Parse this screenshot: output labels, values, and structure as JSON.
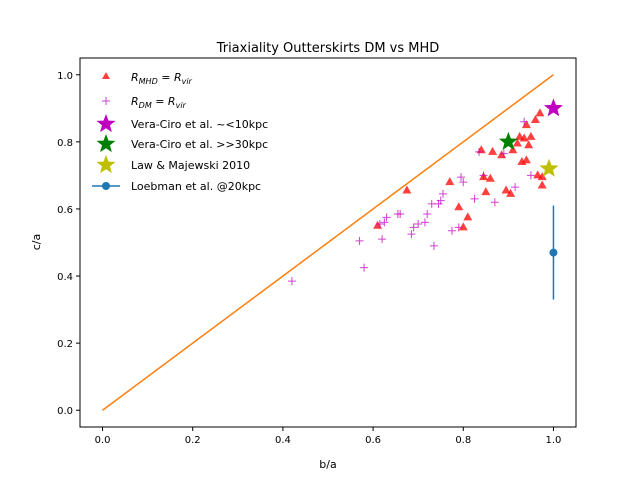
{
  "chart_data": {
    "type": "scatter",
    "title": "Triaxiality Outterskirts DM vs MHD",
    "xlabel": "b/a",
    "ylabel": "c/a",
    "xlim": [
      -0.05,
      1.05
    ],
    "ylim": [
      -0.05,
      1.05
    ],
    "xticks": [
      "0.0",
      "0.2",
      "0.4",
      "0.6",
      "0.8",
      "1.0"
    ],
    "yticks": [
      "0.0",
      "0.2",
      "0.4",
      "0.6",
      "0.8",
      "1.0"
    ],
    "grid": false,
    "legend_position": "top-left",
    "legend": {
      "mhd": {
        "main": "R",
        "sub": "MHD",
        "rest": " = R",
        "sub2": "vir"
      },
      "dm": {
        "main": "R",
        "sub": "DM",
        "rest": " = R",
        "sub2": "vir"
      },
      "vc10": "Vera-Ciro et al. ~<10kpc",
      "vc30": "Vera-Ciro et al. >>30kpc",
      "law": "Law & Majewski 2010",
      "loeb": "Loebman et al. @20kpc"
    },
    "series": [
      {
        "name": "R_MHD = R_vir",
        "color": "#ff0000",
        "marker": "triangle",
        "points": [
          [
            0.61,
            0.55
          ],
          [
            0.675,
            0.655
          ],
          [
            0.77,
            0.68
          ],
          [
            0.79,
            0.605
          ],
          [
            0.8,
            0.545
          ],
          [
            0.81,
            0.575
          ],
          [
            0.84,
            0.775
          ],
          [
            0.845,
            0.695
          ],
          [
            0.85,
            0.65
          ],
          [
            0.86,
            0.69
          ],
          [
            0.865,
            0.77
          ],
          [
            0.885,
            0.76
          ],
          [
            0.895,
            0.655
          ],
          [
            0.905,
            0.645
          ],
          [
            0.91,
            0.775
          ],
          [
            0.92,
            0.795
          ],
          [
            0.925,
            0.815
          ],
          [
            0.93,
            0.74
          ],
          [
            0.935,
            0.81
          ],
          [
            0.94,
            0.745
          ],
          [
            0.94,
            0.85
          ],
          [
            0.945,
            0.79
          ],
          [
            0.95,
            0.815
          ],
          [
            0.96,
            0.865
          ],
          [
            0.965,
            0.7
          ],
          [
            0.97,
            0.885
          ],
          [
            0.975,
            0.67
          ],
          [
            0.975,
            0.695
          ]
        ]
      },
      {
        "name": "R_DM = R_vir",
        "color": "#bf00bf",
        "marker": "plus",
        "points": [
          [
            0.42,
            0.385
          ],
          [
            0.57,
            0.505
          ],
          [
            0.58,
            0.425
          ],
          [
            0.615,
            0.555
          ],
          [
            0.62,
            0.51
          ],
          [
            0.625,
            0.56
          ],
          [
            0.63,
            0.575
          ],
          [
            0.655,
            0.585
          ],
          [
            0.66,
            0.585
          ],
          [
            0.685,
            0.525
          ],
          [
            0.69,
            0.545
          ],
          [
            0.7,
            0.555
          ],
          [
            0.715,
            0.56
          ],
          [
            0.72,
            0.585
          ],
          [
            0.73,
            0.615
          ],
          [
            0.735,
            0.49
          ],
          [
            0.745,
            0.615
          ],
          [
            0.75,
            0.625
          ],
          [
            0.755,
            0.645
          ],
          [
            0.775,
            0.535
          ],
          [
            0.79,
            0.545
          ],
          [
            0.795,
            0.695
          ],
          [
            0.8,
            0.68
          ],
          [
            0.825,
            0.63
          ],
          [
            0.835,
            0.77
          ],
          [
            0.845,
            0.7
          ],
          [
            0.87,
            0.62
          ],
          [
            0.89,
            0.765
          ],
          [
            0.915,
            0.665
          ],
          [
            0.935,
            0.86
          ],
          [
            0.95,
            0.7
          ]
        ]
      },
      {
        "name": "Vera-Ciro et al. ~<10kpc",
        "color": "#bf00bf",
        "marker": "star",
        "points": [
          [
            1.0,
            0.9
          ]
        ]
      },
      {
        "name": "Vera-Ciro et al. >>30kpc",
        "color": "#008000",
        "marker": "star",
        "points": [
          [
            0.9,
            0.8
          ]
        ]
      },
      {
        "name": "Law & Majewski 2010",
        "color": "#bfbf00",
        "marker": "star",
        "points": [
          [
            0.99,
            0.72
          ]
        ]
      },
      {
        "name": "Loebman et al. @20kpc",
        "color": "#1f77b4",
        "marker": "errorbar",
        "points": [
          [
            1.0,
            0.47
          ]
        ],
        "yerr": [
          0.14
        ]
      }
    ],
    "reference_line": {
      "color": "#ff7f0e",
      "x": [
        0.0,
        1.0
      ],
      "y": [
        0.0,
        1.0
      ]
    }
  }
}
